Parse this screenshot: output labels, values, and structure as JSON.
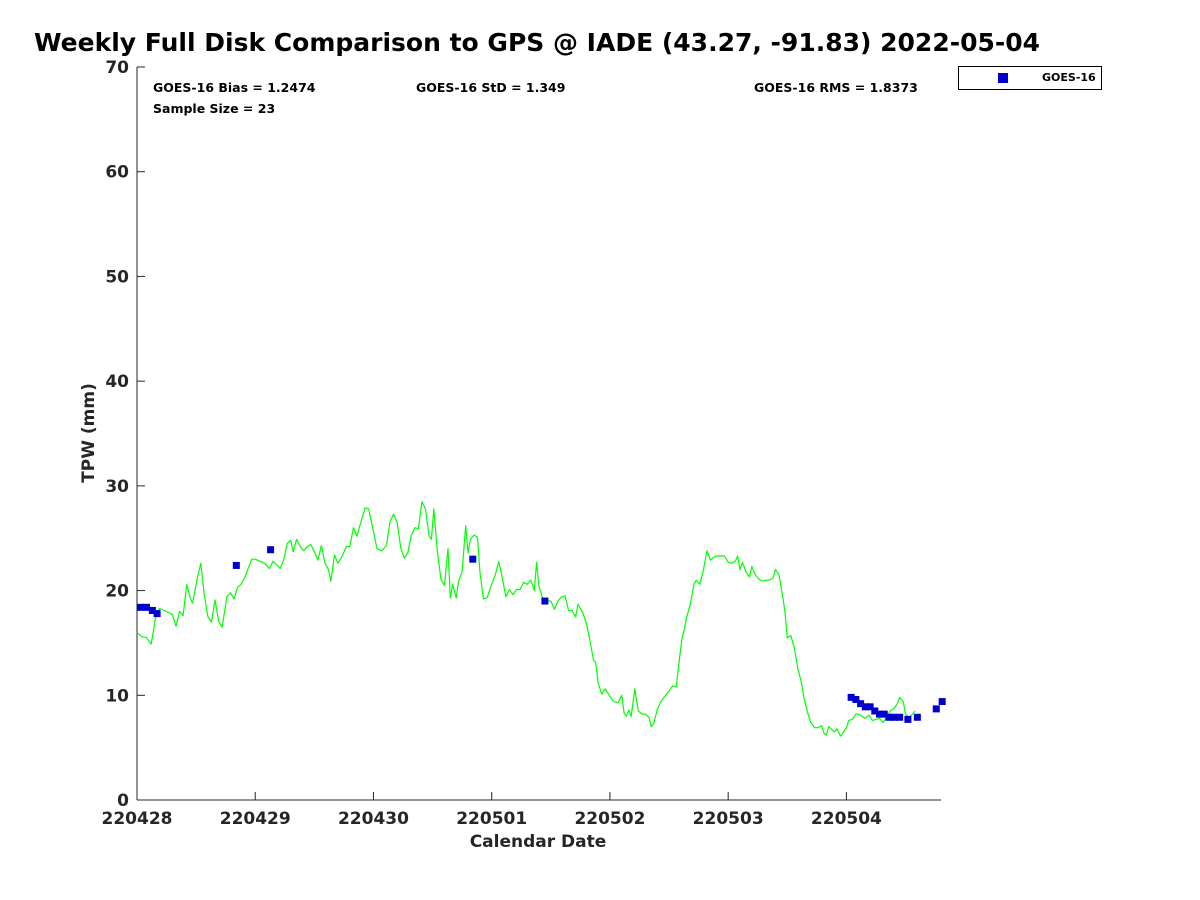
{
  "chart_data": {
    "type": "line",
    "title": "Weekly Full Disk Comparison to GPS @ IADE (43.27, -91.83) 2022-05-04",
    "xlabel": "Calendar Date",
    "ylabel": "TPW (mm)",
    "xlim": [
      0,
      6.8
    ],
    "ylim": [
      0,
      70
    ],
    "x_unit": "days after 2022-04-28 00:00 UTC (tick labels YYMMDD)",
    "xticks": [
      0,
      1,
      2,
      3,
      4,
      5,
      6
    ],
    "xtick_labels": [
      "220428",
      "220429",
      "220430",
      "220501",
      "220502",
      "220503",
      "220504"
    ],
    "yticks": [
      0,
      10,
      20,
      30,
      40,
      50,
      60,
      70
    ],
    "grid": false,
    "legend_position": "top-right (outside plot)",
    "stats": {
      "bias_label": "GOES-16 Bias = 1.2474",
      "std_label": "GOES-16 StD = 1.349",
      "rms_label": "GOES-16 RMS = 1.8373",
      "sample_label": "Sample Size = 23"
    },
    "series": [
      {
        "name": "",
        "kind": "line",
        "color": "#00ff00",
        "points": [
          [
            0.0,
            16.0
          ],
          [
            0.04,
            15.6
          ],
          [
            0.08,
            15.5
          ],
          [
            0.12,
            14.9
          ],
          [
            0.16,
            17.6
          ],
          [
            0.19,
            18.3
          ],
          [
            0.23,
            18.1
          ],
          [
            0.27,
            17.9
          ],
          [
            0.3,
            17.7
          ],
          [
            0.33,
            16.6
          ],
          [
            0.36,
            18.0
          ],
          [
            0.39,
            17.6
          ],
          [
            0.42,
            20.6
          ],
          [
            0.45,
            19.3
          ],
          [
            0.47,
            18.8
          ],
          [
            0.51,
            21.2
          ],
          [
            0.54,
            22.6
          ],
          [
            0.57,
            19.5
          ],
          [
            0.6,
            17.5
          ],
          [
            0.63,
            17.0
          ],
          [
            0.66,
            19.1
          ],
          [
            0.69,
            17.1
          ],
          [
            0.72,
            16.5
          ],
          [
            0.76,
            19.4
          ],
          [
            0.79,
            19.8
          ],
          [
            0.82,
            19.2
          ],
          [
            0.85,
            20.3
          ],
          [
            0.88,
            20.6
          ],
          [
            0.91,
            21.2
          ],
          [
            0.94,
            22.1
          ],
          [
            0.97,
            23.0
          ],
          [
            1.0,
            23.0
          ],
          [
            1.04,
            22.8
          ],
          [
            1.08,
            22.6
          ],
          [
            1.12,
            22.1
          ],
          [
            1.15,
            22.8
          ],
          [
            1.18,
            22.5
          ],
          [
            1.21,
            22.1
          ],
          [
            1.24,
            22.9
          ],
          [
            1.27,
            24.5
          ],
          [
            1.3,
            24.8
          ],
          [
            1.32,
            23.7
          ],
          [
            1.35,
            24.9
          ],
          [
            1.38,
            24.2
          ],
          [
            1.41,
            23.8
          ],
          [
            1.44,
            24.2
          ],
          [
            1.47,
            24.4
          ],
          [
            1.5,
            23.7
          ],
          [
            1.53,
            22.9
          ],
          [
            1.56,
            24.3
          ],
          [
            1.59,
            22.6
          ],
          [
            1.62,
            22.0
          ],
          [
            1.64,
            20.9
          ],
          [
            1.67,
            23.4
          ],
          [
            1.7,
            22.6
          ],
          [
            1.74,
            23.4
          ],
          [
            1.77,
            24.2
          ],
          [
            1.8,
            24.2
          ],
          [
            1.83,
            26.0
          ],
          [
            1.86,
            25.2
          ],
          [
            1.9,
            26.8
          ],
          [
            1.93,
            27.9
          ],
          [
            1.96,
            27.8
          ],
          [
            2.0,
            25.6
          ],
          [
            2.03,
            24.0
          ],
          [
            2.07,
            23.8
          ],
          [
            2.11,
            24.3
          ],
          [
            2.14,
            26.6
          ],
          [
            2.17,
            27.3
          ],
          [
            2.2,
            26.5
          ],
          [
            2.23,
            24.1
          ],
          [
            2.26,
            23.1
          ],
          [
            2.29,
            23.6
          ],
          [
            2.32,
            25.3
          ],
          [
            2.35,
            26.0
          ],
          [
            2.38,
            25.9
          ],
          [
            2.41,
            28.5
          ],
          [
            2.44,
            27.8
          ],
          [
            2.47,
            25.2
          ],
          [
            2.49,
            24.9
          ],
          [
            2.51,
            27.8
          ],
          [
            2.54,
            23.8
          ],
          [
            2.57,
            21.1
          ],
          [
            2.6,
            20.5
          ],
          [
            2.63,
            24.0
          ],
          [
            2.65,
            19.3
          ],
          [
            2.67,
            20.6
          ],
          [
            2.7,
            19.3
          ],
          [
            2.72,
            20.9
          ],
          [
            2.75,
            21.8
          ],
          [
            2.78,
            26.2
          ],
          [
            2.8,
            23.6
          ],
          [
            2.82,
            24.9
          ],
          [
            2.85,
            25.3
          ],
          [
            2.88,
            25.1
          ],
          [
            2.9,
            21.8
          ],
          [
            2.93,
            19.2
          ],
          [
            2.96,
            19.3
          ],
          [
            3.0,
            20.6
          ],
          [
            3.03,
            21.5
          ],
          [
            3.06,
            22.8
          ],
          [
            3.09,
            21.2
          ],
          [
            3.12,
            19.4
          ],
          [
            3.15,
            20.1
          ],
          [
            3.18,
            19.6
          ],
          [
            3.21,
            20.1
          ],
          [
            3.24,
            20.1
          ],
          [
            3.27,
            20.8
          ],
          [
            3.3,
            20.6
          ],
          [
            3.33,
            21.0
          ],
          [
            3.36,
            20.0
          ],
          [
            3.38,
            22.7
          ],
          [
            3.4,
            20.4
          ],
          [
            3.43,
            19.3
          ],
          [
            3.46,
            19.0
          ],
          [
            3.5,
            19.0
          ],
          [
            3.53,
            18.2
          ],
          [
            3.56,
            19.0
          ],
          [
            3.59,
            19.4
          ],
          [
            3.62,
            19.5
          ],
          [
            3.65,
            18.1
          ],
          [
            3.68,
            18.1
          ],
          [
            3.71,
            17.5
          ],
          [
            3.73,
            18.7
          ],
          [
            3.77,
            17.9
          ],
          [
            3.8,
            16.9
          ],
          [
            3.83,
            15.3
          ],
          [
            3.86,
            13.4
          ],
          [
            3.88,
            13.1
          ],
          [
            3.9,
            11.2
          ],
          [
            3.93,
            10.1
          ],
          [
            3.96,
            10.6
          ],
          [
            4.0,
            9.9
          ],
          [
            4.03,
            9.4
          ],
          [
            4.07,
            9.3
          ],
          [
            4.1,
            10.0
          ],
          [
            4.12,
            8.3
          ],
          [
            4.14,
            8.0
          ],
          [
            4.16,
            8.6
          ],
          [
            4.18,
            8.0
          ],
          [
            4.21,
            10.6
          ],
          [
            4.24,
            8.5
          ],
          [
            4.27,
            8.2
          ],
          [
            4.3,
            8.2
          ],
          [
            4.33,
            7.9
          ],
          [
            4.35,
            7.0
          ],
          [
            4.37,
            7.3
          ],
          [
            4.4,
            8.6
          ],
          [
            4.43,
            9.4
          ],
          [
            4.47,
            10.0
          ],
          [
            4.5,
            10.4
          ],
          [
            4.53,
            10.9
          ],
          [
            4.56,
            10.8
          ],
          [
            4.59,
            13.7
          ],
          [
            4.61,
            15.5
          ],
          [
            4.63,
            16.3
          ],
          [
            4.65,
            17.5
          ],
          [
            4.68,
            18.7
          ],
          [
            4.71,
            20.6
          ],
          [
            4.73,
            21.0
          ],
          [
            4.76,
            20.6
          ],
          [
            4.79,
            21.9
          ],
          [
            4.82,
            23.8
          ],
          [
            4.85,
            22.9
          ],
          [
            4.88,
            23.2
          ],
          [
            4.91,
            23.3
          ],
          [
            4.94,
            23.3
          ],
          [
            4.97,
            23.3
          ],
          [
            5.0,
            22.7
          ],
          [
            5.03,
            22.6
          ],
          [
            5.06,
            22.8
          ],
          [
            5.08,
            23.3
          ],
          [
            5.1,
            22.0
          ],
          [
            5.12,
            22.7
          ],
          [
            5.15,
            21.8
          ],
          [
            5.18,
            21.3
          ],
          [
            5.2,
            22.3
          ],
          [
            5.23,
            21.5
          ],
          [
            5.26,
            21.1
          ],
          [
            5.29,
            20.9
          ],
          [
            5.32,
            21.0
          ],
          [
            5.35,
            21.0
          ],
          [
            5.38,
            21.2
          ],
          [
            5.4,
            22.0
          ],
          [
            5.43,
            21.5
          ],
          [
            5.46,
            19.5
          ],
          [
            5.48,
            18.0
          ],
          [
            5.5,
            15.5
          ],
          [
            5.53,
            15.7
          ],
          [
            5.56,
            14.5
          ],
          [
            5.59,
            12.5
          ],
          [
            5.62,
            11.2
          ],
          [
            5.64,
            9.8
          ],
          [
            5.67,
            8.4
          ],
          [
            5.7,
            7.4
          ],
          [
            5.73,
            6.9
          ],
          [
            5.76,
            6.9
          ],
          [
            5.79,
            7.1
          ],
          [
            5.81,
            6.4
          ],
          [
            5.83,
            6.2
          ],
          [
            5.85,
            7.0
          ],
          [
            5.88,
            6.7
          ],
          [
            5.9,
            6.5
          ],
          [
            5.92,
            6.8
          ],
          [
            5.95,
            6.1
          ],
          [
            5.97,
            6.4
          ],
          [
            6.0,
            6.9
          ],
          [
            6.02,
            7.6
          ],
          [
            6.05,
            7.7
          ],
          [
            6.08,
            8.2
          ],
          [
            6.1,
            8.2
          ],
          [
            6.13,
            8.0
          ],
          [
            6.16,
            7.8
          ],
          [
            6.19,
            8.1
          ],
          [
            6.22,
            7.6
          ],
          [
            6.25,
            7.7
          ],
          [
            6.28,
            7.8
          ],
          [
            6.31,
            7.4
          ],
          [
            6.34,
            7.9
          ],
          [
            6.37,
            8.5
          ],
          [
            6.4,
            8.7
          ],
          [
            6.43,
            9.2
          ],
          [
            6.45,
            9.8
          ],
          [
            6.48,
            9.4
          ],
          [
            6.5,
            8.2
          ],
          [
            6.53,
            7.9
          ],
          [
            6.56,
            8.2
          ],
          [
            6.58,
            8.5
          ]
        ]
      },
      {
        "name": "GOES-16",
        "kind": "scatter",
        "color": "#0000cc",
        "marker": "square",
        "points": [
          [
            0.03,
            18.4
          ],
          [
            0.08,
            18.4
          ],
          [
            0.13,
            18.1
          ],
          [
            0.17,
            17.8
          ],
          [
            0.84,
            22.4
          ],
          [
            1.13,
            23.9
          ],
          [
            2.84,
            23.0
          ],
          [
            3.45,
            19.0
          ],
          [
            6.04,
            9.8
          ],
          [
            6.08,
            9.6
          ],
          [
            6.12,
            9.2
          ],
          [
            6.16,
            8.9
          ],
          [
            6.2,
            8.9
          ],
          [
            6.24,
            8.5
          ],
          [
            6.28,
            8.2
          ],
          [
            6.32,
            8.2
          ],
          [
            6.36,
            7.9
          ],
          [
            6.4,
            7.9
          ],
          [
            6.45,
            7.9
          ],
          [
            6.52,
            7.7
          ],
          [
            6.6,
            7.9
          ],
          [
            6.76,
            8.7
          ],
          [
            6.81,
            9.4
          ]
        ]
      }
    ]
  }
}
